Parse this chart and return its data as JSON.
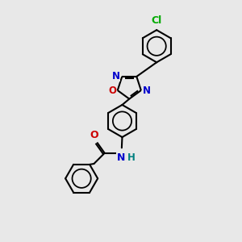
{
  "bg_color": "#e8e8e8",
  "line_color": "#000000",
  "bond_width": 1.5,
  "atom_colors": {
    "N": "#0000cc",
    "O": "#cc0000",
    "Cl": "#00aa00",
    "H": "#008080",
    "C": "#000000"
  },
  "font_size": 8.5,
  "hex_r": 0.68,
  "ox_r": 0.52
}
